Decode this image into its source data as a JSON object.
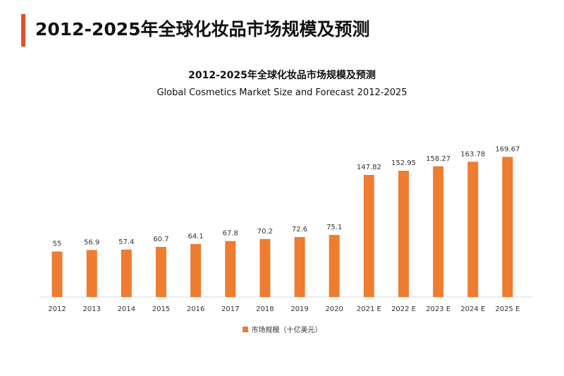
{
  "page_title": "2012-2025年全球化妆品市场规模及预测",
  "colors": {
    "accent_bar": "#e0522b",
    "bar": "#ee7c31",
    "axis": "#d9d9d9",
    "text": "#333333"
  },
  "chart_data": {
    "type": "bar",
    "title": "2012-2025年全球化妆品市场规模及预测",
    "subtitle": "Global Cosmetics Market Size and Forecast 2012-2025",
    "categories": [
      "2012",
      "2013",
      "2014",
      "2015",
      "2016",
      "2017",
      "2018",
      "2019",
      "2020",
      "2021 E",
      "2022 E",
      "2023 E",
      "2024 E",
      "2025 E"
    ],
    "series": [
      {
        "name": "市场规模（十亿美元）",
        "values": [
          55,
          56.9,
          57.4,
          60.7,
          64.1,
          67.8,
          70.2,
          72.6,
          75.1,
          147.82,
          152.95,
          158.27,
          163.78,
          169.67
        ]
      }
    ],
    "data_labels": [
      "55",
      "56.9",
      "57.4",
      "60.7",
      "64.1",
      "67.8",
      "70.2",
      "72.6",
      "75.1",
      "147.82",
      "152.95",
      "158.27",
      "163.78",
      "169.67"
    ],
    "xlabel": "",
    "ylabel": "",
    "ylim": [
      0,
      175
    ],
    "grid": false,
    "legend_position": "bottom",
    "yaxis_visible": false
  }
}
